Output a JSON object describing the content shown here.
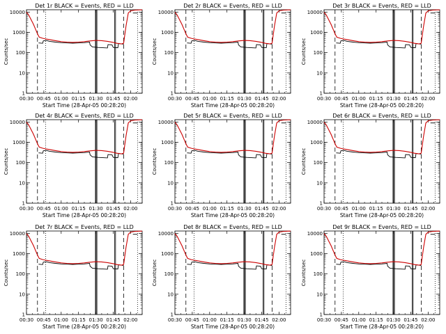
{
  "figure": {
    "background": "#ffffff",
    "events_color": "#000000",
    "lld_color": "#cc0000",
    "xlabel": "Start Time (28-Apr-05 00:28:20)",
    "ylabel": "Counts/sec"
  },
  "chart_data": [
    {
      "type": "line",
      "title": "Det 1r BLACK = Events, RED = LLD"
    },
    {
      "type": "line",
      "title": "Det 2r BLACK = Events, RED = LLD"
    },
    {
      "type": "line",
      "title": "Det 3r BLACK = Events, RED = LLD"
    },
    {
      "type": "line",
      "title": "Det 4r BLACK = Events, RED = LLD"
    },
    {
      "type": "line",
      "title": "Det 5r BLACK = Events, RED = LLD"
    },
    {
      "type": "line",
      "title": "Det 6r BLACK = Events, RED = LLD"
    },
    {
      "type": "line",
      "title": "Det 7r BLACK = Events, RED = LLD"
    },
    {
      "type": "line",
      "title": "Det 8r BLACK = Events, RED = LLD"
    },
    {
      "type": "line",
      "title": "Det 9r BLACK = Events, RED = LLD"
    }
  ],
  "shared": {
    "x_ticks": [
      "00:30",
      "00:45",
      "01:00",
      "01:15",
      "01:30",
      "01:45",
      "02:00"
    ],
    "x_tick_minutes": [
      30,
      45,
      60,
      75,
      90,
      105,
      120
    ],
    "x_range_minutes": [
      30,
      130
    ],
    "y_ticks": [
      "1",
      "10",
      "100",
      "1000",
      "10000"
    ],
    "y_tick_values": [
      1,
      10,
      100,
      1000,
      10000
    ],
    "y_range": [
      1,
      13000
    ],
    "y_scale": "log",
    "grid": false,
    "dashed_lines_minutes": [
      39.5,
      114
    ],
    "dotted_lines_minutes": [
      46.5,
      126
    ],
    "solid_lines_minutes": [
      89.6,
      90.2,
      90.9,
      106.2,
      107.0
    ],
    "lld": {
      "x": [
        30,
        32,
        34,
        36,
        38,
        39.5,
        41,
        44,
        47,
        50,
        55,
        60,
        65,
        70,
        75,
        80,
        85,
        90,
        95,
        100,
        105,
        108,
        110,
        112,
        114,
        116,
        118,
        120,
        124,
        128,
        130
      ],
      "values": [
        9800,
        7000,
        4200,
        2500,
        1350,
        850,
        580,
        510,
        470,
        440,
        390,
        350,
        330,
        320,
        330,
        350,
        380,
        400,
        390,
        360,
        320,
        290,
        280,
        270,
        290,
        2000,
        9000,
        11500,
        12500,
        12800,
        12800
      ]
    },
    "events": {
      "x": [
        40.5,
        44,
        44.5,
        47,
        50,
        55,
        60,
        65,
        70,
        75,
        80,
        84.5,
        85,
        87,
        90,
        92,
        96,
        100,
        100.5,
        104,
        105,
        109,
        109.5,
        112,
        114
      ],
      "values": [
        300,
        290,
        380,
        400,
        360,
        330,
        310,
        300,
        295,
        300,
        310,
        330,
        240,
        190,
        185,
        180,
        175,
        170,
        250,
        240,
        180,
        175,
        280,
        270,
        260
      ]
    },
    "sat_events": {
      "x": [
        122,
        126
      ],
      "value": 9000
    }
  }
}
